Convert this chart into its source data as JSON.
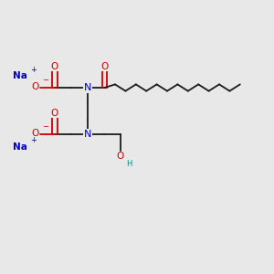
{
  "bg_color": "#e8e8e8",
  "bond_color": "#1a1a1a",
  "N_color": "#0000cc",
  "O_color": "#cc0000",
  "Na_color": "#0000cc",
  "H_color": "#008b8b",
  "neg_color": "#cc0000",
  "figsize": [
    3.0,
    3.0
  ],
  "dpi": 100,
  "N1": [
    3.2,
    6.8
  ],
  "N2": [
    3.2,
    5.1
  ],
  "chain_n": 13,
  "chain_seg": 0.38,
  "chain_zig": 0.12
}
